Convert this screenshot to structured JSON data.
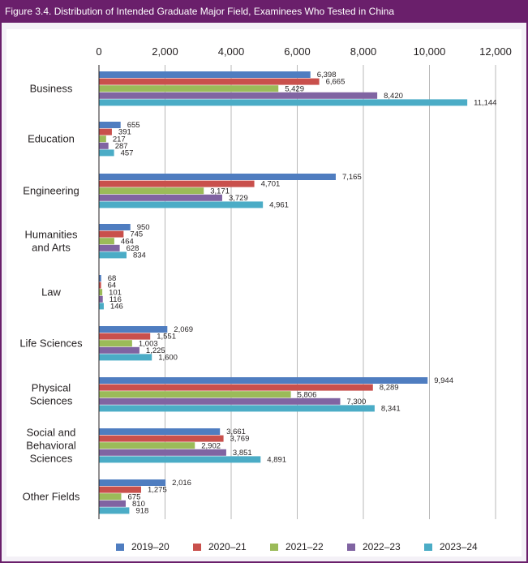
{
  "title": "Figure 3.4. Distribution of Intended Graduate Major Field, Examinees Who Tested in China",
  "chart_data": {
    "type": "bar",
    "orientation": "horizontal",
    "title": "Figure 3.4. Distribution of Intended Graduate Major Field, Examinees Who Tested in China",
    "xlabel": "",
    "ylabel": "",
    "xlim": [
      0,
      12000
    ],
    "x_ticks": [
      "0",
      "2,000",
      "4,000",
      "6,000",
      "8,000",
      "10,000",
      "12,000"
    ],
    "x_axis_position": "top",
    "grid": true,
    "legend_position": "bottom",
    "categories": [
      [
        "Business"
      ],
      [
        "Education"
      ],
      [
        "Engineering"
      ],
      [
        "Humanities",
        "and Arts"
      ],
      [
        "Law"
      ],
      [
        "Life Sciences"
      ],
      [
        "Physical",
        "Sciences"
      ],
      [
        "Social and",
        "Behavioral",
        "Sciences"
      ],
      [
        "Other Fields"
      ]
    ],
    "series": [
      {
        "name": "2019–20",
        "color": "#4f7dc0",
        "values": [
          6398,
          655,
          7165,
          950,
          68,
          2069,
          9944,
          3661,
          2016
        ],
        "labels": [
          "6,398",
          "655",
          "7,165",
          "950",
          "68",
          "2,069",
          "9,944",
          "3,661",
          "2,016"
        ]
      },
      {
        "name": "2020–21",
        "color": "#c9504c",
        "values": [
          6665,
          391,
          4701,
          745,
          64,
          1551,
          8289,
          3769,
          1275
        ],
        "labels": [
          "6,665",
          "391",
          "4,701",
          "745",
          "64",
          "1,551",
          "8,289",
          "3,769",
          "1,275"
        ]
      },
      {
        "name": "2021–22",
        "color": "#9bbb59",
        "values": [
          5429,
          217,
          3171,
          464,
          101,
          1003,
          5806,
          2902,
          675
        ],
        "labels": [
          "5,429",
          "217",
          "3,171",
          "464",
          "101",
          "1,003",
          "5,806",
          "2,902",
          "675"
        ]
      },
      {
        "name": "2022–23",
        "color": "#8064a2",
        "values": [
          8420,
          287,
          3729,
          628,
          116,
          1225,
          7300,
          3851,
          810
        ],
        "labels": [
          "8,420",
          "287",
          "3,729",
          "628",
          "116",
          "1,225",
          "7,300",
          "3,851",
          "810"
        ]
      },
      {
        "name": "2023–24",
        "color": "#4bacc6",
        "values": [
          11144,
          457,
          4961,
          834,
          146,
          1600,
          8341,
          4891,
          918
        ],
        "labels": [
          "11,144",
          "457",
          "4,961",
          "834",
          "146",
          "1,600",
          "8,341",
          "4,891",
          "918"
        ]
      }
    ]
  }
}
